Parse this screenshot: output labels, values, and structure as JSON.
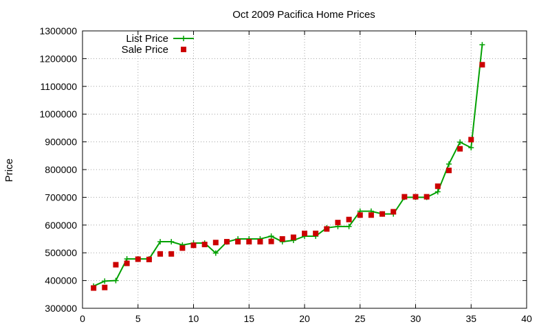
{
  "chart_data": {
    "type": "line",
    "title": "Oct 2009 Pacifica Home Prices",
    "xlabel": "",
    "ylabel": "Price",
    "xlim": [
      0,
      40
    ],
    "ylim": [
      300000,
      1300000
    ],
    "xticks": [
      0,
      5,
      10,
      15,
      20,
      25,
      30,
      35,
      40
    ],
    "yticks": [
      300000,
      400000,
      500000,
      600000,
      700000,
      800000,
      900000,
      1000000,
      1100000,
      1200000,
      1300000
    ],
    "grid": true,
    "legend_position": "top-left",
    "series": [
      {
        "name": "List Price",
        "style": "linespoints",
        "color": "#00a000",
        "marker": "plus",
        "x": [
          1,
          2,
          3,
          4,
          5,
          6,
          7,
          8,
          9,
          10,
          11,
          12,
          13,
          14,
          15,
          16,
          17,
          18,
          19,
          20,
          21,
          22,
          23,
          24,
          25,
          26,
          27,
          28,
          29,
          30,
          31,
          32,
          33,
          34,
          35,
          36
        ],
        "y": [
          380000,
          398000,
          400000,
          478000,
          478000,
          478000,
          540000,
          540000,
          528000,
          535000,
          535000,
          499000,
          539000,
          550000,
          550000,
          550000,
          560000,
          540000,
          545000,
          560000,
          560000,
          590000,
          595000,
          595000,
          650000,
          650000,
          640000,
          640000,
          700000,
          700000,
          700000,
          720000,
          820000,
          899000,
          879000,
          1250000
        ]
      },
      {
        "name": "Sale Price",
        "style": "points",
        "color": "#cc0000",
        "marker": "square",
        "x": [
          1,
          2,
          3,
          4,
          5,
          6,
          7,
          8,
          9,
          10,
          11,
          12,
          13,
          14,
          15,
          16,
          17,
          18,
          19,
          20,
          21,
          22,
          23,
          24,
          25,
          26,
          27,
          28,
          29,
          30,
          31,
          32,
          33,
          34,
          35,
          36
        ],
        "y": [
          373000,
          375000,
          457000,
          462000,
          477000,
          476000,
          496000,
          496000,
          517000,
          527000,
          530000,
          537000,
          540000,
          540000,
          540000,
          540000,
          541000,
          550000,
          556000,
          570000,
          570000,
          586000,
          609000,
          620000,
          636000,
          636000,
          640000,
          648000,
          702000,
          702000,
          702000,
          740000,
          797000,
          875000,
          908000,
          1178000
        ]
      }
    ]
  }
}
